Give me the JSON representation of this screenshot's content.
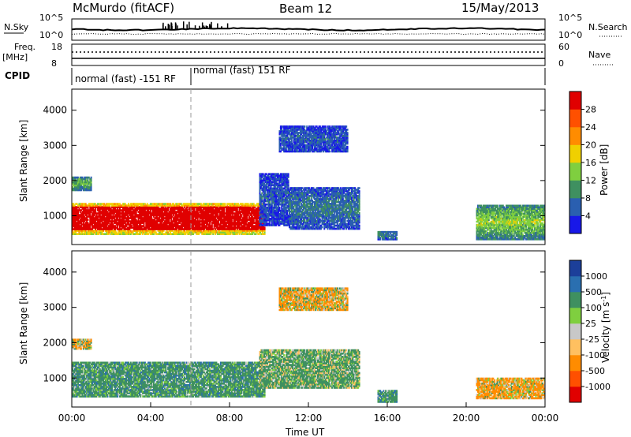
{
  "header": {
    "station": "McMurdo (fitACF)",
    "beam": "Beam 12",
    "date": "15/May/2013"
  },
  "strip_labels": {
    "nsky": "N.Sky",
    "nsky_ticks": [
      "10^5",
      "10^0"
    ],
    "nsearch": "N.Search",
    "nsearch_ticks": [
      "10^5",
      "10^0"
    ],
    "freq": "Freq.",
    "freq_unit": "[MHz]",
    "freq_ticks": [
      "18",
      "8"
    ],
    "nave": "Nave",
    "nave_ticks": [
      "60",
      "0"
    ],
    "cpid": "CPID",
    "cpid_segments": [
      "normal (fast) -151 RF",
      "normal (fast) 151 RF"
    ]
  },
  "chart_data": [
    {
      "type": "heatmap",
      "name": "power-panel",
      "ylabel": "Slant Range [km]",
      "xlabel": "",
      "xlim": [
        0,
        24
      ],
      "ylim": [
        180,
        4600
      ],
      "y_ticks": [
        "1000",
        "2000",
        "3000",
        "4000"
      ],
      "colorbar": {
        "label": "Power [dB]",
        "ticks": [
          "4",
          "8",
          "12",
          "16",
          "20",
          "24",
          "28"
        ],
        "colors": [
          "#1818e8",
          "#2a5fb0",
          "#3f9060",
          "#7fcf3f",
          "#f0d000",
          "#ff8c00",
          "#ff5000",
          "#e00000"
        ]
      },
      "regions_note": "",
      "blobs": [
        {
          "t0": 0.0,
          "t1": 9.8,
          "r0": 450,
          "r1": 1350,
          "v": 30
        },
        {
          "t0": 9.5,
          "t1": 11.0,
          "r0": 700,
          "r1": 2200,
          "v": 6
        },
        {
          "t0": 11.0,
          "t1": 14.6,
          "r0": 600,
          "r1": 1800,
          "v": 8
        },
        {
          "t0": 0.0,
          "t1": 1.0,
          "r0": 1700,
          "r1": 2100,
          "v": 13
        },
        {
          "t0": 10.5,
          "t1": 14.0,
          "r0": 2800,
          "r1": 3550,
          "v": 6
        },
        {
          "t0": 15.5,
          "t1": 16.5,
          "r0": 300,
          "r1": 550,
          "v": 9
        },
        {
          "t0": 20.5,
          "t1": 24.0,
          "r0": 300,
          "r1": 1300,
          "v": 15
        }
      ]
    },
    {
      "type": "heatmap",
      "name": "velocity-panel",
      "ylabel": "Slant Range [km]",
      "xlabel": "Time UT",
      "xlim": [
        0,
        24
      ],
      "ylim": [
        180,
        4600
      ],
      "x_ticks": [
        "00:00",
        "04:00",
        "08:00",
        "12:00",
        "16:00",
        "20:00",
        "00:00"
      ],
      "y_ticks": [
        "1000",
        "2000",
        "3000",
        "4000"
      ],
      "colorbar": {
        "label": "Velocity [m s^-1]",
        "ticks": [
          "1000",
          "500",
          "100",
          "25",
          "-25",
          "-100",
          "-500",
          "-1000"
        ],
        "colors": [
          "#1c3f9a",
          "#2a6fb0",
          "#3f9060",
          "#7fcf3f",
          "#c8c8c8",
          "#ffc060",
          "#ff8c00",
          "#ff5000",
          "#e00000"
        ]
      },
      "blobs": [
        {
          "t0": 0.0,
          "t1": 9.8,
          "r0": 450,
          "r1": 1450,
          "v": 300
        },
        {
          "t0": 9.5,
          "t1": 14.6,
          "r0": 700,
          "r1": 1800,
          "v": 200
        },
        {
          "t0": 0.0,
          "t1": 1.0,
          "r0": 1800,
          "r1": 2100,
          "v": -50
        },
        {
          "t0": 10.5,
          "t1": 14.0,
          "r0": 2900,
          "r1": 3550,
          "v": -100
        },
        {
          "t0": 15.5,
          "t1": 16.5,
          "r0": 300,
          "r1": 650,
          "v": 300
        },
        {
          "t0": 20.5,
          "t1": 24.0,
          "r0": 400,
          "r1": 1000,
          "v": -150
        }
      ]
    }
  ]
}
